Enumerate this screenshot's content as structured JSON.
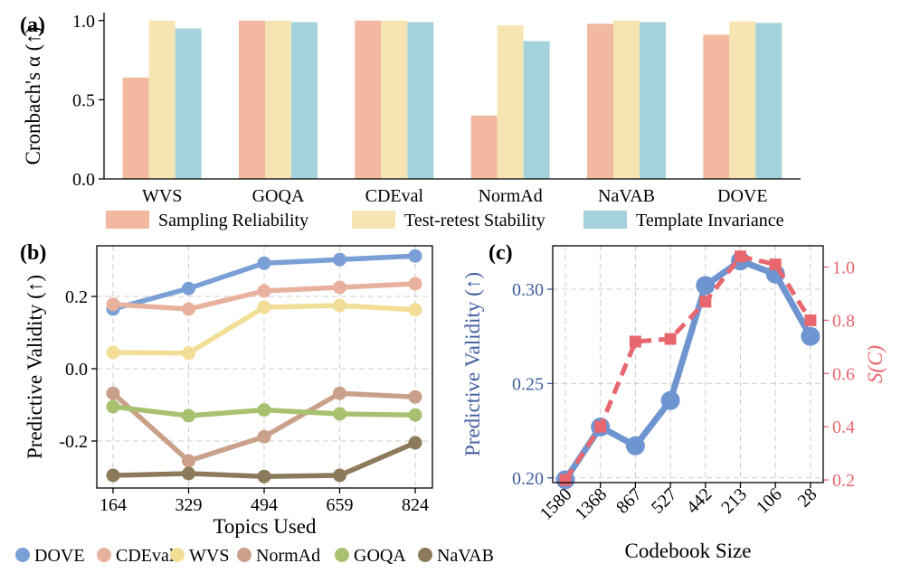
{
  "chart_data": [
    {
      "panel": "(a)",
      "type": "bar",
      "ylabel": "Cronbach's α (↑)",
      "ylim": [
        0,
        1.05
      ],
      "yticks": [
        "0.0",
        "0.5",
        "1.0"
      ],
      "categories": [
        "WVS",
        "GOQA",
        "CDEval",
        "NormAd",
        "NaVAB",
        "DOVE"
      ],
      "series": [
        {
          "name": "Sampling Reliability",
          "color": "#f2b8a0",
          "values": [
            0.64,
            1.0,
            1.0,
            0.4,
            0.98,
            0.91
          ]
        },
        {
          "name": "Test-retest Stability",
          "color": "#f6e5b2",
          "values": [
            1.0,
            1.0,
            1.0,
            0.97,
            1.0,
            0.995
          ]
        },
        {
          "name": "Template Invariance",
          "color": "#a3d2dc",
          "values": [
            0.95,
            0.99,
            0.99,
            0.87,
            0.99,
            0.985
          ]
        }
      ]
    },
    {
      "panel": "(b)",
      "type": "line",
      "xlabel": "Topics Used",
      "ylabel": "Predictive Validity (↑)",
      "x": [
        "164",
        "329",
        "494",
        "659",
        "824"
      ],
      "ylim": [
        -0.33,
        0.34
      ],
      "yticks": [
        0.2,
        0.0,
        -0.2
      ],
      "ytick_labels": [
        "0.2",
        "0.0",
        "-0.2"
      ],
      "series": [
        {
          "name": "DOVE",
          "color": "#7a9fd6",
          "values": [
            0.165,
            0.222,
            0.292,
            0.302,
            0.312
          ]
        },
        {
          "name": "CDEval",
          "color": "#e8b19d",
          "values": [
            0.178,
            0.165,
            0.215,
            0.225,
            0.235
          ]
        },
        {
          "name": "WVS",
          "color": "#f2de96",
          "values": [
            0.045,
            0.043,
            0.17,
            0.175,
            0.163
          ]
        },
        {
          "name": "NormAd",
          "color": "#c9a089",
          "values": [
            -0.068,
            -0.255,
            -0.188,
            -0.068,
            -0.078
          ]
        },
        {
          "name": "GOQA",
          "color": "#a8c170",
          "values": [
            -0.105,
            -0.13,
            -0.114,
            -0.125,
            -0.128
          ]
        },
        {
          "name": "NaVAB",
          "color": "#8b7b5b",
          "values": [
            -0.295,
            -0.29,
            -0.298,
            -0.295,
            -0.205
          ]
        }
      ]
    },
    {
      "panel": "(c)",
      "type": "line",
      "xlabel": "Codebook Size",
      "ylabel_left": "Predictive Validity (↑)",
      "ylabel_right": "S(C)",
      "x": [
        "1580",
        "1368",
        "867",
        "527",
        "442",
        "213",
        "106",
        "28"
      ],
      "left_ylim": [
        0.1975,
        0.323
      ],
      "left_yticks": [
        0.2,
        0.25,
        0.3
      ],
      "left_ytick_labels": [
        "0.20",
        "0.25",
        "0.30"
      ],
      "right_ylim": [
        0.19,
        1.08
      ],
      "right_yticks": [
        0.2,
        0.4,
        0.6,
        0.8,
        1.0
      ],
      "right_ytick_labels": [
        "0.2",
        "0.4",
        "0.6",
        "0.8",
        "1.0"
      ],
      "series": [
        {
          "name": "Predictive Validity",
          "axis": "left",
          "color": "#6f95d1",
          "values": [
            0.199,
            0.227,
            0.217,
            0.241,
            0.302,
            0.315,
            0.308,
            0.275
          ]
        },
        {
          "name": "S(C)",
          "axis": "right",
          "color": "#e8666d",
          "values": [
            0.2,
            0.4,
            0.72,
            0.73,
            0.87,
            1.04,
            1.01,
            0.8
          ]
        }
      ]
    }
  ]
}
